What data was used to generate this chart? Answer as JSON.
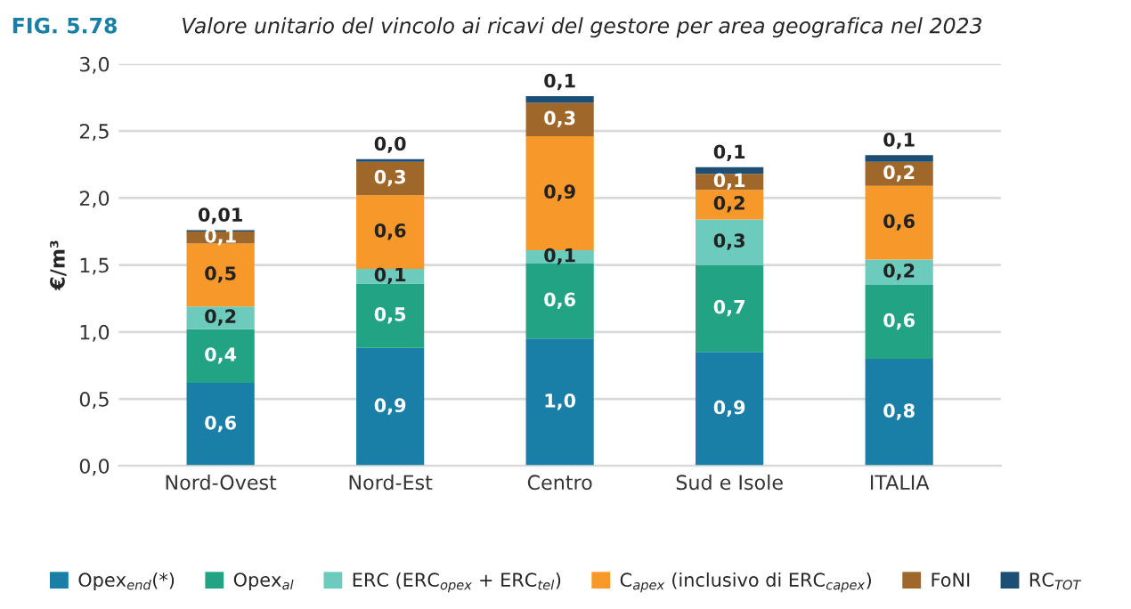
{
  "chart_data": {
    "type": "bar",
    "stacked": true,
    "title": "Valore unitario del vincolo ai ricavi del gestore per area geografica nel 2023",
    "annotations": [
      "FIG. 5.78"
    ],
    "ylabel": "€/m³",
    "categories": [
      "Nord-Ovest",
      "Nord-Est",
      "Centro",
      "Sud e Isole",
      "ITALIA"
    ],
    "series": [
      {
        "name": "Opex$_{end}$(*)",
        "color": "#1a7fa6",
        "values": [
          0.62,
          0.88,
          0.95,
          0.85,
          0.8
        ],
        "value_labels": [
          "0,6",
          "0,9",
          "1,0",
          "0,9",
          "0,8"
        ]
      },
      {
        "name": "Opex$_{al}$",
        "color": "#22a384",
        "values": [
          0.4,
          0.48,
          0.56,
          0.65,
          0.55
        ],
        "value_labels": [
          "0,4",
          "0,5",
          "0,6",
          "0,7",
          "0,6"
        ]
      },
      {
        "name": "ERC (ERC$_{opex}$ + ERC$_{tel}$)",
        "color": "#6ccbbd",
        "values": [
          0.17,
          0.11,
          0.1,
          0.34,
          0.19
        ],
        "value_labels": [
          "0,2",
          "0,1",
          "0,1",
          "0,3",
          "0,2"
        ]
      },
      {
        "name": "C$_{apex}$ (inclusivo di ERC$_{capex}$)",
        "color": "#f7982b",
        "values": [
          0.47,
          0.55,
          0.85,
          0.22,
          0.55
        ],
        "value_labels": [
          "0,5",
          "0,6",
          "0,9",
          "0,2",
          "0,6"
        ]
      },
      {
        "name": "FoNI",
        "color": "#a0672a",
        "values": [
          0.09,
          0.25,
          0.25,
          0.12,
          0.18
        ],
        "value_labels": [
          "0,1",
          "0,3",
          "0,3",
          "0,1",
          "0,2"
        ]
      },
      {
        "name": "RC$_{TOT}$",
        "color": "#1d4f74",
        "values": [
          0.01,
          0.02,
          0.05,
          0.05,
          0.05
        ],
        "value_labels": [
          "0,01",
          "0,0",
          "0,1",
          "0,1",
          "0,1"
        ]
      }
    ],
    "ylim": [
      0,
      3.0
    ],
    "yticks": [
      {
        "value": 0,
        "label": "0,0"
      },
      {
        "value": 0.5,
        "label": "0,5"
      },
      {
        "value": 1.0,
        "label": "1,0"
      },
      {
        "value": 1.5,
        "label": "1,5"
      },
      {
        "value": 2.0,
        "label": "2,0"
      },
      {
        "value": 2.5,
        "label": "2,5"
      },
      {
        "value": 3.0,
        "label": "3,0"
      }
    ],
    "grid": "y",
    "legend": "bottom"
  }
}
